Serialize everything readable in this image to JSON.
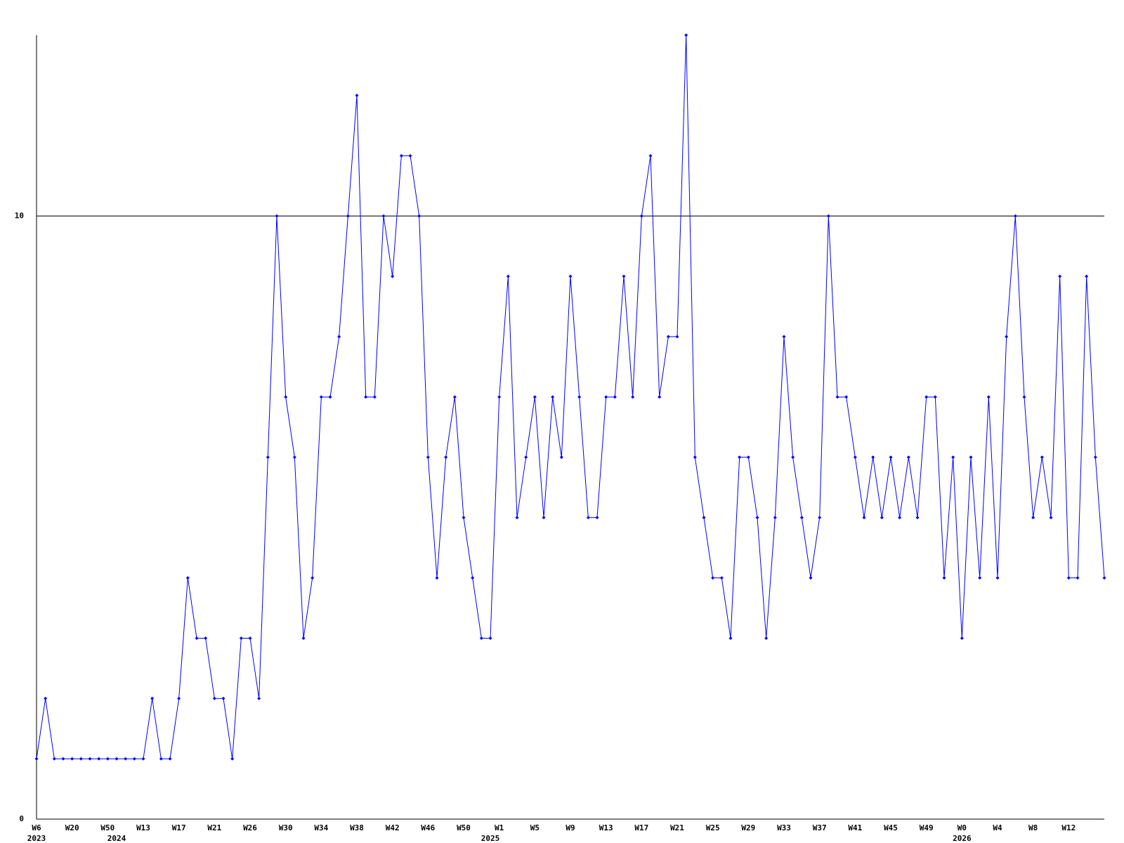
{
  "chart_data": {
    "type": "line",
    "categories": [
      "W6",
      null,
      null,
      null,
      "W20",
      null,
      null,
      null,
      "W50",
      null,
      null,
      null,
      "W13",
      null,
      null,
      null,
      "W17",
      null,
      null,
      null,
      "W21",
      null,
      null,
      null,
      "W26",
      null,
      null,
      null,
      "W30",
      null,
      null,
      null,
      "W34",
      null,
      null,
      null,
      "W38",
      null,
      null,
      null,
      "W42",
      null,
      null,
      null,
      "W46",
      null,
      null,
      null,
      "W50",
      null,
      null,
      null,
      "W1",
      null,
      null,
      null,
      "W5",
      null,
      null,
      null,
      "W9",
      null,
      null,
      null,
      "W13",
      null,
      null,
      null,
      "W17",
      null,
      null,
      null,
      "W21",
      null,
      null,
      null,
      "W25",
      null,
      null,
      null,
      "W29",
      null,
      null,
      null,
      "W33",
      null,
      null,
      null,
      "W37",
      null,
      null,
      null,
      "W41",
      null,
      null,
      null,
      "W45",
      null,
      null,
      null,
      "W49",
      null,
      null,
      null,
      "W0",
      null,
      null,
      null,
      "W4",
      null,
      null,
      null,
      "W8",
      null,
      null,
      null,
      "W12",
      null,
      null,
      null,
      null
    ],
    "year_labels": [
      "2023",
      null,
      null,
      null,
      null,
      null,
      null,
      null,
      null,
      "2024",
      null,
      null,
      null,
      null,
      null,
      null,
      null,
      null,
      null,
      null,
      null,
      null,
      null,
      null,
      null,
      null,
      null,
      null,
      null,
      null,
      null,
      null,
      null,
      null,
      null,
      null,
      null,
      null,
      null,
      null,
      null,
      null,
      null,
      null,
      null,
      null,
      null,
      null,
      null,
      null,
      null,
      "2025",
      null,
      null,
      null,
      null,
      null,
      null,
      null,
      null,
      null,
      null,
      null,
      null,
      null,
      null,
      null,
      null,
      null,
      null,
      null,
      null,
      null,
      null,
      null,
      null,
      null,
      null,
      null,
      null,
      null,
      null,
      null,
      null,
      null,
      null,
      null,
      null,
      null,
      null,
      null,
      null,
      null,
      null,
      null,
      null,
      null,
      null,
      null,
      null,
      null,
      null,
      null,
      null,
      "2026",
      null,
      null,
      null,
      null,
      null,
      null,
      null,
      null,
      null,
      null,
      null,
      null,
      null,
      null,
      null,
      null
    ],
    "values": [
      1,
      2,
      1,
      1,
      1,
      1,
      1,
      1,
      1,
      1,
      1,
      1,
      1,
      2,
      1,
      1,
      2,
      4,
      3,
      3,
      2,
      2,
      1,
      3,
      3,
      2,
      6,
      10,
      7,
      6,
      3,
      4,
      7,
      7,
      8,
      10,
      12,
      7,
      7,
      10,
      9,
      11,
      11,
      10,
      6,
      4,
      6,
      7,
      5,
      4,
      3,
      3,
      7,
      9,
      5,
      6,
      7,
      5,
      7,
      6,
      9,
      7,
      5,
      5,
      7,
      7,
      9,
      7,
      10,
      11,
      7,
      8,
      8,
      13,
      6,
      5,
      4,
      4,
      3,
      6,
      6,
      5,
      3,
      5,
      8,
      6,
      5,
      4,
      5,
      10,
      7,
      7,
      6,
      5,
      6,
      5,
      6,
      5,
      6,
      5,
      7,
      7,
      4,
      6,
      3,
      6,
      4,
      7,
      4,
      8,
      10,
      7,
      5,
      6,
      5,
      9,
      4,
      4,
      9,
      6,
      4
    ],
    "color": "#0000ff",
    "ylim": [
      0,
      13
    ],
    "yticks": [
      0,
      10
    ],
    "grid": true
  }
}
